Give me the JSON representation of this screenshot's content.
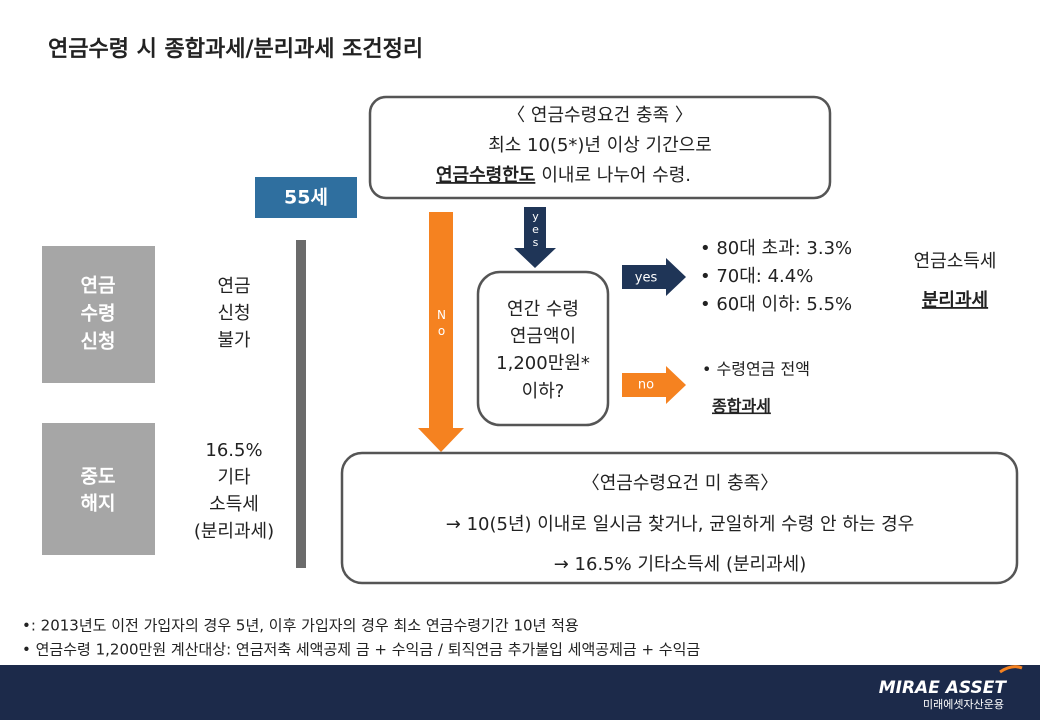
{
  "title": "연금수령 시 종합과세/분리과세 조건정리",
  "top_box": {
    "heading": "〈 연금수령요건 충족 〉",
    "line1": "최소 10(5*)년 이상 기간으로",
    "line2_emphasis": "연금수령한도",
    "line2_rest": "이내로 나누어 수령."
  },
  "age_marker": "55세",
  "stages": [
    {
      "label": [
        "연금",
        "수령",
        "신청"
      ],
      "result": [
        "연금",
        "신청",
        "불가"
      ]
    },
    {
      "label": [
        "중도",
        "해지"
      ],
      "result": [
        "16.5%",
        "기타",
        "소득세",
        "(분리과세)"
      ]
    }
  ],
  "flow": {
    "no_arrow": "No",
    "yes_arrow": "yes",
    "question": [
      "연간 수령",
      "연금액이",
      "1,200만원*",
      "이하?"
    ],
    "yes_label": "yes",
    "no_label": "no",
    "yes_result": {
      "bullets": [
        "• 80대 초과: 3.3%",
        "• 70대: 4.4%",
        "• 60대 이하: 5.5%"
      ],
      "tax": "연금소득세",
      "method": "분리과세"
    },
    "no_result": {
      "bullet": "• 수령연금 전액",
      "method": "종합과세"
    }
  },
  "bottom_box": {
    "heading": "〈연금수령요건 미 충족〉",
    "lines": [
      "→ 10(5년) 이내로 일시금 찾거나, 균일하게 수령 안 하는 경우",
      "→ 16.5% 기타소득세 (분리과세)"
    ]
  },
  "footnotes": [
    "•: 2013년도 이전 가입자의 경우 5년, 이후 가입자의 경우 최소 연금수령기간 10년 적용",
    "• 연금수령 1,200만원 계산대상: 연금저축 세액공제 금 + 수익금 / 퇴직연금 추가불입 세액공제금 + 수익금"
  ],
  "logo": {
    "name": "MIRAE ASSET",
    "sub": "미래에셋자산운용"
  }
}
